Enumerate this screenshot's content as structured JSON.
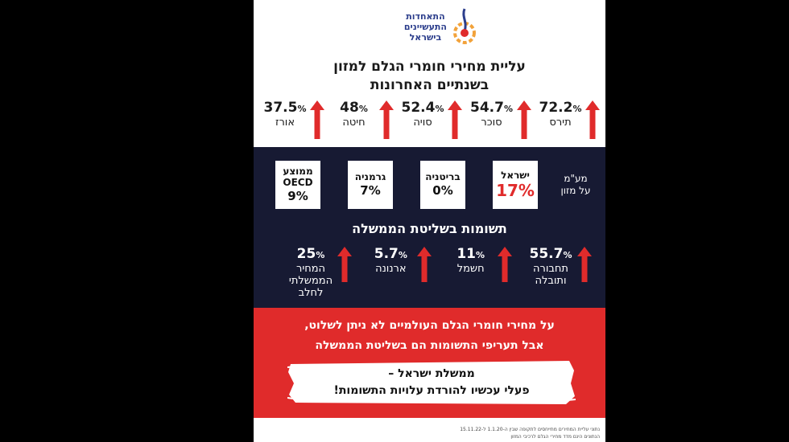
{
  "logo": {
    "lines": [
      "התאחדות",
      "התעשיינים",
      "בישראל"
    ]
  },
  "title": [
    "עליית מחירי חומרי הגלם למזון",
    "בשנתיים האחרונות"
  ],
  "raw_materials": [
    {
      "value": "72.2",
      "unit": "%",
      "label": "תירס"
    },
    {
      "value": "54.7",
      "unit": "%",
      "label": "סוכר"
    },
    {
      "value": "52.4",
      "unit": "%",
      "label": "סויה"
    },
    {
      "value": "48",
      "unit": "%",
      "label": "חיטה"
    },
    {
      "value": "37.5",
      "unit": "%",
      "label": "אורז"
    }
  ],
  "vat": {
    "label": [
      "מע\"מ",
      "על מזון"
    ],
    "countries": [
      {
        "name": "ישראל",
        "value": "17%"
      },
      {
        "name": "בריטניה",
        "value": "0%"
      },
      {
        "name": "גרמניה",
        "value": "7%"
      },
      {
        "name": "ממוצע OECD",
        "value": "9%"
      }
    ]
  },
  "inputs_title": "תשומות בשליטת הממשלה",
  "inputs": [
    {
      "value": "55.7",
      "unit": "%",
      "label": "תחבורה ותובלה"
    },
    {
      "value": "11",
      "unit": "%",
      "label": "חשמל"
    },
    {
      "value": "5.7",
      "unit": "%",
      "label": "ארנונה"
    },
    {
      "value": "25",
      "unit": "%",
      "label": "המחיר הממשלתי לחלב"
    }
  ],
  "statement": [
    "על מחירי חומרי הגלם העולמיים לא ניתן לשלוט,",
    "אבל תעריפי התשומות הם בשליטת הממשלה"
  ],
  "call": [
    "ממשלת ישראל –",
    "פעלי עכשיו להורדת עלויות התשומות!"
  ],
  "footnote": [
    "נתוני עליית המחירים מתייחסים לתקופה שבין ה-1.1.20 ל-15.11.22",
    "הנתונים הינם מדד מחירי הגלם לרכיבי המזון"
  ]
}
